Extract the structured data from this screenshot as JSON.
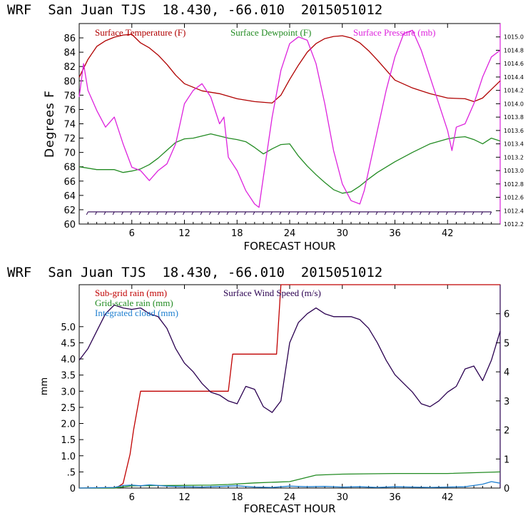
{
  "colors": {
    "temperature": "#b00000",
    "dewpoint": "#228b22",
    "pressure": "#dd22dd",
    "subgrid_rain": "#c00000",
    "gridscale_rain": "#228b22",
    "cloud": "#1e7fd0",
    "wind": "#2a0050",
    "axis": "#000000"
  },
  "chart_data": [
    {
      "type": "line",
      "header": "WRF  San Juan TJS  18.430, -66.010  2015051012",
      "xlabel": "FORECAST HOUR",
      "ylabel": "Degrees F",
      "xlim": [
        0,
        48
      ],
      "xticks": [
        6,
        12,
        18,
        24,
        30,
        36,
        42
      ],
      "ylim": [
        60,
        88
      ],
      "yticks": [
        60,
        62,
        64,
        66,
        68,
        70,
        72,
        74,
        76,
        78,
        80,
        82,
        84,
        86
      ],
      "y2lim": [
        1012.2,
        1015.2
      ],
      "y2ticks": [
        "1012.2",
        "1012.4",
        "1012.6",
        "1012.8",
        "1013.0",
        "1013.2",
        "1013.4",
        "1013.6",
        "1013.8",
        "1014.0",
        "1014.2",
        "1014.4",
        "1014.6",
        "1014.8",
        "1015.0"
      ],
      "legend_placement": "top",
      "series": [
        {
          "name": "Surface Temperature (F)",
          "axis": "left",
          "color_key": "temperature",
          "x": [
            0,
            1,
            2,
            3,
            4,
            5,
            6,
            7,
            8,
            9,
            10,
            11,
            12,
            14,
            16,
            18,
            20,
            22,
            23,
            24,
            25,
            26,
            27,
            28,
            29,
            30,
            31,
            32,
            33,
            34,
            35,
            36,
            38,
            40,
            42,
            44,
            45,
            46,
            47,
            48
          ],
          "y": [
            80.5,
            83,
            84.8,
            85.6,
            86.1,
            86.4,
            86.5,
            85.3,
            84.6,
            83.6,
            82.3,
            80.8,
            79.6,
            78.6,
            78.2,
            77.5,
            77.1,
            76.9,
            78.0,
            80.2,
            82.2,
            84.0,
            85.2,
            85.9,
            86.2,
            86.3,
            86.0,
            85.3,
            84.2,
            82.9,
            81.5,
            80.1,
            79.0,
            78.2,
            77.6,
            77.5,
            77.1,
            77.6,
            78.8,
            80.0
          ]
        },
        {
          "name": "Surface Dewpoint (F)",
          "axis": "left",
          "color_key": "dewpoint",
          "x": [
            0,
            2,
            4,
            5,
            6,
            7,
            8,
            9,
            10,
            11,
            12,
            13,
            14,
            15,
            16,
            17,
            18,
            19,
            20,
            21,
            22,
            23,
            24,
            25,
            26,
            27,
            28,
            29,
            30,
            31,
            32,
            33,
            34,
            36,
            38,
            40,
            42,
            43,
            44,
            45,
            46,
            47,
            48
          ],
          "y": [
            68,
            67.6,
            67.6,
            67.2,
            67.4,
            67.7,
            68.3,
            69.2,
            70.3,
            71.4,
            71.9,
            72.0,
            72.3,
            72.6,
            72.3,
            72.0,
            71.8,
            71.5,
            70.7,
            69.8,
            70.5,
            71.1,
            71.2,
            69.5,
            68.1,
            66.9,
            65.8,
            64.8,
            64.3,
            64.5,
            65.3,
            66.3,
            67.2,
            68.7,
            70.0,
            71.2,
            71.9,
            72.1,
            72.2,
            71.8,
            71.2,
            72.0,
            71.6
          ]
        },
        {
          "name": "Surface Pressure (mb)",
          "axis": "right",
          "color_key": "pressure",
          "x": [
            0,
            0.5,
            1,
            2,
            3,
            4,
            5,
            6,
            7,
            8,
            9,
            10,
            11,
            12,
            13,
            14,
            15,
            16,
            16.5,
            17,
            18,
            19,
            20,
            20.5,
            21,
            22,
            23,
            24,
            25,
            26,
            27,
            28,
            29,
            30,
            31,
            32,
            32.5,
            33,
            34,
            35,
            36,
            37,
            38,
            39,
            40,
            41,
            42,
            42.5,
            43,
            44,
            45,
            46,
            47,
            48
          ],
          "y": [
            1014.1,
            1014.6,
            1014.2,
            1013.9,
            1013.65,
            1013.8,
            1013.4,
            1013.05,
            1013.0,
            1012.85,
            1013.0,
            1013.1,
            1013.4,
            1014.0,
            1014.2,
            1014.3,
            1014.1,
            1013.7,
            1013.8,
            1013.2,
            1013.0,
            1012.7,
            1012.5,
            1012.45,
            1012.9,
            1013.8,
            1014.5,
            1014.9,
            1015.0,
            1014.95,
            1014.6,
            1014.0,
            1013.3,
            1012.8,
            1012.55,
            1012.5,
            1012.7,
            1013.0,
            1013.6,
            1014.2,
            1014.7,
            1015.05,
            1015.1,
            1014.8,
            1014.4,
            1014.0,
            1013.6,
            1013.3,
            1013.65,
            1013.7,
            1014.0,
            1014.4,
            1014.7,
            1014.8
          ]
        }
      ],
      "wind_barbs": {
        "level": 61.7,
        "hours": [
          1,
          2,
          3,
          4,
          5,
          6,
          7,
          8,
          9,
          10,
          11,
          12,
          13,
          14,
          15,
          16,
          17,
          18,
          19,
          20,
          21,
          22,
          23,
          24,
          25,
          26,
          27,
          28,
          29,
          30,
          31,
          32,
          33,
          34,
          35,
          36,
          37,
          38,
          39,
          40,
          41,
          42,
          43,
          44,
          45,
          46,
          47
        ]
      }
    },
    {
      "type": "line",
      "header": "WRF  San Juan TJS  18.430, -66.010  2015051012",
      "xlabel": "FORECAST HOUR",
      "ylabel": "mm",
      "xlim": [
        0,
        48
      ],
      "xticks": [
        6,
        12,
        18,
        24,
        30,
        36,
        42
      ],
      "ylim": [
        0,
        6.3
      ],
      "yticks": [
        "0",
        ".5",
        "1.0",
        "1.5",
        "2.0",
        "2.5",
        "3.0",
        "3.5",
        "4.0",
        "4.5",
        "5.0"
      ],
      "y2lim": [
        0,
        7.0
      ],
      "y2ticks": [
        "0",
        "1",
        "2",
        "3",
        "4",
        "5",
        "6"
      ],
      "legend_placement": "top-left",
      "series": [
        {
          "name": "Sub-grid rain (mm)",
          "axis": "left",
          "color_key": "subgrid_rain",
          "x": [
            0,
            4.2,
            4.2,
            5,
            5,
            5.8,
            5.8,
            6.2,
            6.2,
            7,
            7,
            17,
            17,
            17.5,
            17.5,
            22.5,
            22.5,
            23,
            23,
            48
          ],
          "y": [
            0,
            0,
            0,
            0.14,
            0.14,
            1.05,
            1.05,
            1.8,
            1.8,
            3.0,
            3.0,
            3.0,
            3.0,
            4.15,
            4.15,
            4.15,
            4.15,
            6.3,
            6.3,
            6.3
          ]
        },
        {
          "name": "Grid-scale rain (mm)",
          "axis": "left",
          "color_key": "gridscale_rain",
          "x": [
            0,
            4,
            6,
            10,
            15,
            17,
            20,
            24,
            27,
            30,
            36,
            42,
            48
          ],
          "y": [
            0,
            0,
            0.07,
            0.08,
            0.09,
            0.11,
            0.16,
            0.2,
            0.4,
            0.43,
            0.45,
            0.45,
            0.5
          ]
        },
        {
          "name": "Integrated cloud (mm)",
          "axis": "left",
          "color_key": "cloud",
          "x": [
            0,
            4,
            5,
            6,
            7,
            8,
            9,
            10,
            12,
            14,
            16,
            18,
            20,
            22,
            24,
            26,
            28,
            30,
            32,
            34,
            36,
            38,
            40,
            42,
            44,
            45,
            46,
            47,
            48
          ],
          "y": [
            0,
            0.02,
            0.08,
            0.09,
            0.07,
            0.1,
            0.08,
            0.06,
            0.04,
            0.03,
            0.05,
            0.07,
            0.03,
            0.02,
            0.06,
            0.04,
            0.05,
            0.03,
            0.04,
            0.02,
            0.04,
            0.03,
            0.02,
            0.03,
            0.04,
            0.08,
            0.12,
            0.2,
            0.15
          ]
        },
        {
          "name": "Surface Wind Speed (m/s)",
          "axis": "right",
          "color_key": "wind",
          "x": [
            0,
            1,
            2,
            3,
            4,
            5,
            6,
            7,
            8,
            9,
            10,
            11,
            12,
            13,
            14,
            15,
            16,
            17,
            18,
            19,
            20,
            21,
            22,
            23,
            24,
            25,
            26,
            27,
            28,
            29,
            30,
            31,
            32,
            33,
            34,
            35,
            36,
            37,
            38,
            39,
            40,
            41,
            42,
            43,
            44,
            45,
            46,
            47,
            48
          ],
          "y": [
            4.4,
            4.8,
            5.4,
            6.0,
            6.3,
            6.2,
            6.15,
            6.2,
            6.0,
            5.9,
            5.5,
            4.8,
            4.3,
            4.0,
            3.6,
            3.3,
            3.2,
            3.0,
            2.9,
            3.5,
            3.4,
            2.8,
            2.6,
            3.0,
            5.0,
            5.7,
            6.0,
            6.2,
            6.0,
            5.9,
            5.9,
            5.9,
            5.8,
            5.5,
            5.0,
            4.4,
            3.9,
            3.6,
            3.3,
            2.9,
            2.8,
            3.0,
            3.3,
            3.5,
            4.1,
            4.2,
            3.7,
            4.4,
            5.4
          ]
        }
      ]
    }
  ]
}
